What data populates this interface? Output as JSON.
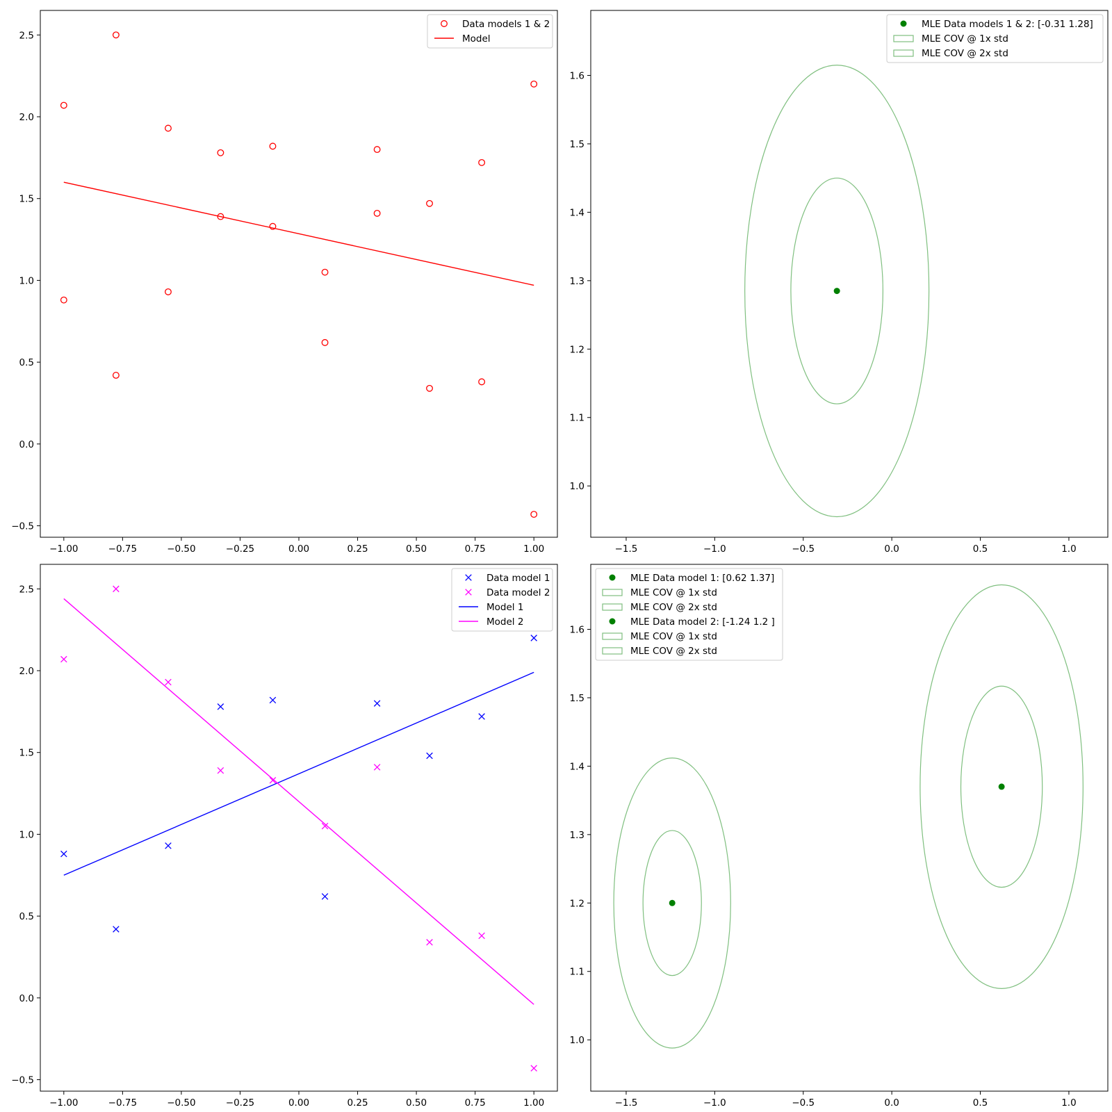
{
  "chart_data": [
    {
      "type": "scatter",
      "xlim": [
        -1.1,
        1.1
      ],
      "ylim": [
        -0.57,
        2.65
      ],
      "xticks": [
        -1.0,
        -0.75,
        -0.5,
        -0.25,
        0.0,
        0.25,
        0.5,
        0.75,
        1.0
      ],
      "xtick_labels": [
        "−1.00",
        "−0.75",
        "−0.50",
        "−0.25",
        "0.00",
        "0.25",
        "0.50",
        "0.75",
        "1.00"
      ],
      "yticks": [
        -0.5,
        0.0,
        0.5,
        1.0,
        1.5,
        2.0,
        2.5
      ],
      "ytick_labels": [
        "−0.5",
        "0.0",
        "0.5",
        "1.0",
        "1.5",
        "2.0",
        "2.5"
      ],
      "legend_position": "top-right",
      "series": [
        {
          "name": "Data models 1 & 2",
          "kind": "scatter",
          "marker": "circle-open",
          "color": "#ff0000",
          "points": [
            [
              -1.0,
              2.07
            ],
            [
              -1.0,
              0.88
            ],
            [
              -0.778,
              2.5
            ],
            [
              -0.778,
              0.42
            ],
            [
              -0.556,
              1.93
            ],
            [
              -0.556,
              0.93
            ],
            [
              -0.333,
              1.78
            ],
            [
              -0.333,
              1.39
            ],
            [
              -0.111,
              1.82
            ],
            [
              -0.111,
              1.33
            ],
            [
              0.111,
              1.05
            ],
            [
              0.111,
              0.62
            ],
            [
              0.333,
              1.8
            ],
            [
              0.333,
              1.41
            ],
            [
              0.556,
              1.47
            ],
            [
              0.556,
              0.34
            ],
            [
              0.778,
              1.72
            ],
            [
              0.778,
              0.38
            ],
            [
              1.0,
              2.2
            ],
            [
              1.0,
              -0.43
            ]
          ]
        },
        {
          "name": "Model",
          "kind": "line",
          "color": "#ff0000",
          "points": [
            [
              -1.0,
              1.6
            ],
            [
              1.0,
              0.97
            ]
          ]
        }
      ]
    },
    {
      "type": "scatter",
      "xlim": [
        -1.7,
        1.22
      ],
      "ylim": [
        0.925,
        1.695
      ],
      "xticks": [
        -1.5,
        -1.0,
        -0.5,
        0.0,
        0.5,
        1.0
      ],
      "xtick_labels": [
        "−1.5",
        "−1.0",
        "−0.5",
        "0.0",
        "0.5",
        "1.0"
      ],
      "yticks": [
        1.0,
        1.1,
        1.2,
        1.3,
        1.4,
        1.5,
        1.6
      ],
      "ytick_labels": [
        "1.0",
        "1.1",
        "1.2",
        "1.3",
        "1.4",
        "1.5",
        "1.6"
      ],
      "legend_position": "top-right",
      "series": [
        {
          "name": "MLE Data models 1 & 2: [-0.31  1.28]",
          "kind": "point",
          "color": "#008000",
          "points": [
            [
              -0.31,
              1.285
            ]
          ]
        },
        {
          "name": "MLE COV @ 1x std",
          "kind": "ellipse",
          "color": "#7fbf7f",
          "center": [
            -0.31,
            1.285
          ],
          "half_width": 0.26,
          "half_height": 0.165
        },
        {
          "name": "MLE COV @ 2x std",
          "kind": "ellipse",
          "color": "#7fbf7f",
          "center": [
            -0.31,
            1.285
          ],
          "half_width": 0.52,
          "half_height": 0.33
        }
      ]
    },
    {
      "type": "scatter",
      "xlim": [
        -1.1,
        1.1
      ],
      "ylim": [
        -0.57,
        2.65
      ],
      "xticks": [
        -1.0,
        -0.75,
        -0.5,
        -0.25,
        0.0,
        0.25,
        0.5,
        0.75,
        1.0
      ],
      "xtick_labels": [
        "−1.00",
        "−0.75",
        "−0.50",
        "−0.25",
        "0.00",
        "0.25",
        "0.50",
        "0.75",
        "1.00"
      ],
      "yticks": [
        -0.5,
        0.0,
        0.5,
        1.0,
        1.5,
        2.0,
        2.5
      ],
      "ytick_labels": [
        "−0.5",
        "0.0",
        "0.5",
        "1.0",
        "1.5",
        "2.0",
        "2.5"
      ],
      "legend_position": "top-right",
      "series": [
        {
          "name": "Data model 1",
          "kind": "scatter",
          "marker": "x",
          "color": "#0000ff",
          "points": [
            [
              -1.0,
              0.88
            ],
            [
              -0.778,
              0.42
            ],
            [
              -0.556,
              0.93
            ],
            [
              -0.333,
              1.78
            ],
            [
              -0.111,
              1.82
            ],
            [
              0.111,
              0.62
            ],
            [
              0.333,
              1.8
            ],
            [
              0.556,
              1.48
            ],
            [
              0.778,
              1.72
            ],
            [
              1.0,
              2.2
            ]
          ]
        },
        {
          "name": "Data model 2",
          "kind": "scatter",
          "marker": "x",
          "color": "#ff00ff",
          "points": [
            [
              -1.0,
              2.07
            ],
            [
              -0.778,
              2.5
            ],
            [
              -0.556,
              1.93
            ],
            [
              -0.333,
              1.39
            ],
            [
              -0.111,
              1.33
            ],
            [
              0.111,
              1.05
            ],
            [
              0.333,
              1.41
            ],
            [
              0.556,
              0.34
            ],
            [
              0.778,
              0.38
            ],
            [
              1.0,
              -0.43
            ]
          ]
        },
        {
          "name": "Model 1",
          "kind": "line",
          "color": "#0000ff",
          "points": [
            [
              -1.0,
              0.75
            ],
            [
              1.0,
              1.99
            ]
          ]
        },
        {
          "name": "Model 2",
          "kind": "line",
          "color": "#ff00ff",
          "points": [
            [
              -1.0,
              2.44
            ],
            [
              1.0,
              -0.04
            ]
          ]
        }
      ]
    },
    {
      "type": "scatter",
      "xlim": [
        -1.7,
        1.22
      ],
      "ylim": [
        0.925,
        1.695
      ],
      "xticks": [
        -1.5,
        -1.0,
        -0.5,
        0.0,
        0.5,
        1.0
      ],
      "xtick_labels": [
        "−1.5",
        "−1.0",
        "−0.5",
        "0.0",
        "0.5",
        "1.0"
      ],
      "yticks": [
        1.0,
        1.1,
        1.2,
        1.3,
        1.4,
        1.5,
        1.6
      ],
      "ytick_labels": [
        "1.0",
        "1.1",
        "1.2",
        "1.3",
        "1.4",
        "1.5",
        "1.6"
      ],
      "legend_position": "top-left",
      "series": [
        {
          "name": "MLE Data model 1: [0.62 1.37]",
          "kind": "point",
          "color": "#008000",
          "points": [
            [
              0.62,
              1.37
            ]
          ]
        },
        {
          "name": "MLE COV @ 1x std",
          "kind": "ellipse",
          "color": "#7fbf7f",
          "center": [
            0.62,
            1.37
          ],
          "half_width": 0.23,
          "half_height": 0.147
        },
        {
          "name": "MLE COV @ 2x std",
          "kind": "ellipse",
          "color": "#7fbf7f",
          "center": [
            0.62,
            1.37
          ],
          "half_width": 0.46,
          "half_height": 0.295
        },
        {
          "name": "MLE Data model 2: [-1.24  1.2 ]",
          "kind": "point",
          "color": "#008000",
          "points": [
            [
              -1.24,
              1.2
            ]
          ]
        },
        {
          "name": "MLE COV @ 1x std",
          "kind": "ellipse",
          "color": "#7fbf7f",
          "center": [
            -1.24,
            1.2
          ],
          "half_width": 0.165,
          "half_height": 0.106
        },
        {
          "name": "MLE COV @ 2x std",
          "kind": "ellipse",
          "color": "#7fbf7f",
          "center": [
            -1.24,
            1.2
          ],
          "half_width": 0.33,
          "half_height": 0.212
        }
      ]
    }
  ]
}
